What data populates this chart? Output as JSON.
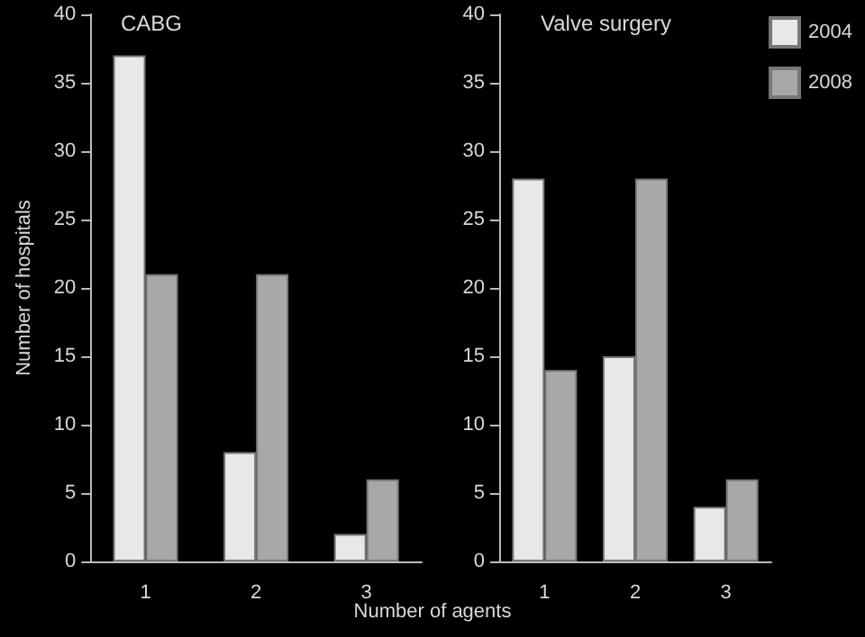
{
  "chart_data": [
    {
      "type": "bar",
      "title": "CABG",
      "ylabel": "Number of hospitals",
      "xlabel": "Number of agents",
      "categories": [
        "1",
        "2",
        "3"
      ],
      "ylim": [
        0,
        40
      ],
      "yticks": [
        0,
        5,
        10,
        15,
        20,
        25,
        30,
        35,
        40
      ],
      "grid": false,
      "legend": false,
      "series": [
        {
          "color": "#e8e8e8",
          "values": [
            37,
            8,
            2
          ]
        },
        {
          "color": "#a8a8a8",
          "values": [
            21,
            21,
            6
          ]
        }
      ]
    },
    {
      "type": "bar",
      "title": "Valve surgery",
      "categories": [
        "1",
        "2",
        "3"
      ],
      "ylim": [
        0,
        40
      ],
      "yticks": [
        0,
        5,
        10,
        15,
        20,
        25,
        30,
        35,
        40
      ],
      "grid": false,
      "legend": "top right",
      "series": [
        {
          "name": "2004",
          "color": "#e8e8e8",
          "values": [
            28,
            15,
            4
          ]
        },
        {
          "name": "2008",
          "color": "#a8a8a8",
          "values": [
            14,
            28,
            6
          ]
        }
      ]
    }
  ]
}
